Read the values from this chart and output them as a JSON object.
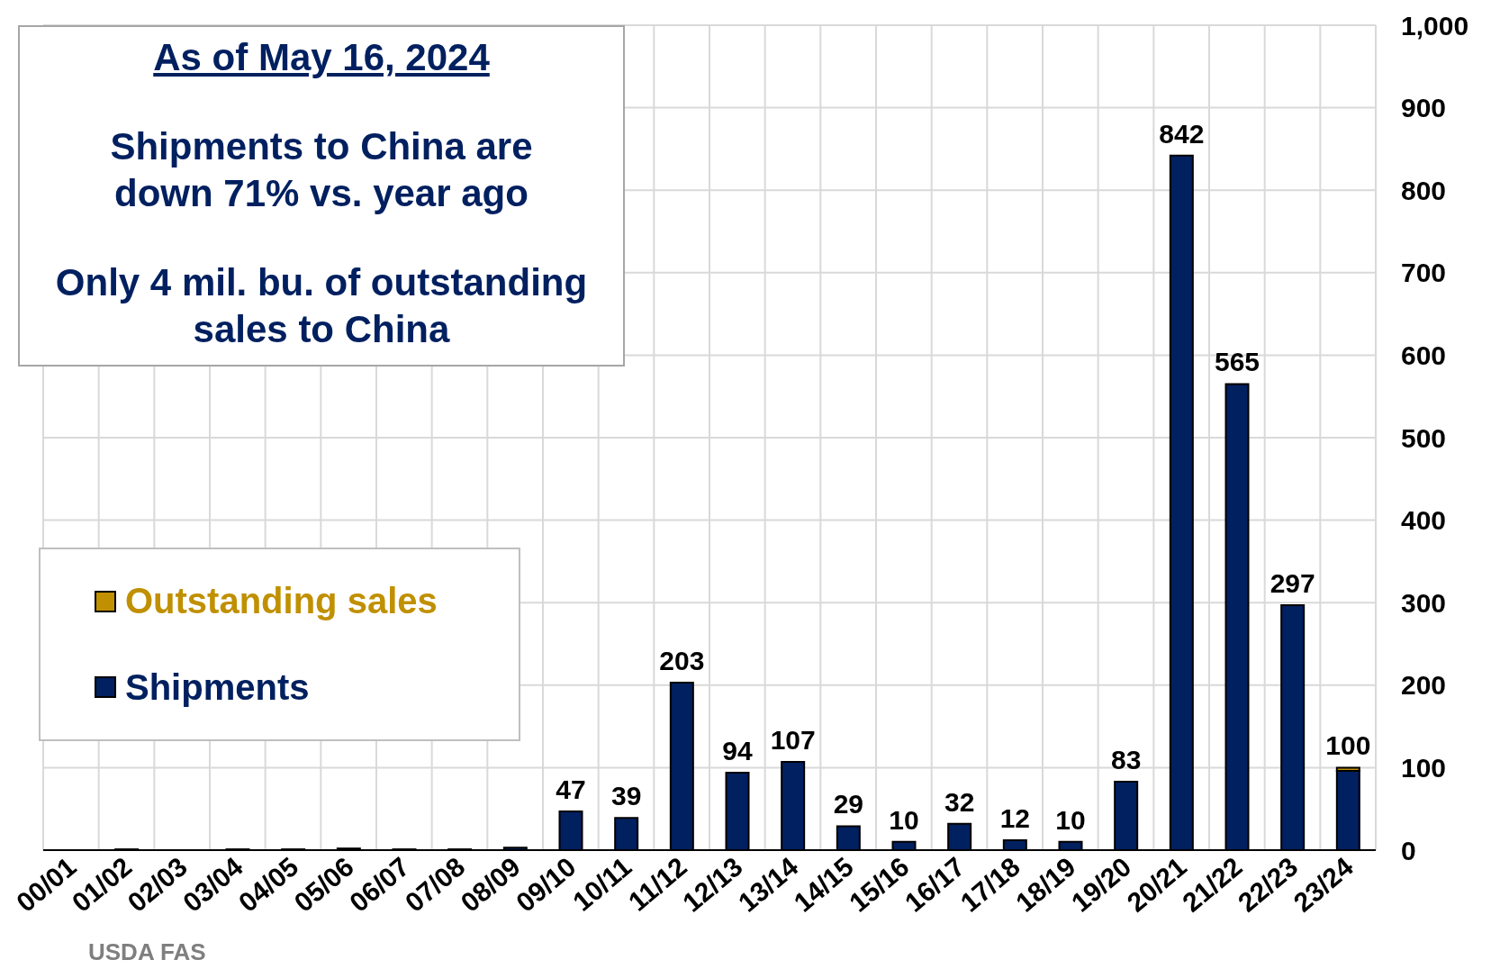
{
  "chart_data": {
    "type": "bar",
    "stacked": true,
    "categories": [
      "00/01",
      "01/02",
      "02/03",
      "03/04",
      "04/05",
      "05/06",
      "06/07",
      "07/08",
      "08/09",
      "09/10",
      "10/11",
      "11/12",
      "12/13",
      "13/14",
      "14/15",
      "15/16",
      "16/17",
      "17/18",
      "18/19",
      "19/20",
      "20/21",
      "21/22",
      "22/23",
      "23/24"
    ],
    "series": [
      {
        "name": "Shipments",
        "color": "#002060",
        "values": [
          0,
          1,
          0,
          1,
          1,
          2,
          1,
          1,
          3,
          47,
          39,
          203,
          94,
          107,
          29,
          10,
          32,
          12,
          10,
          83,
          842,
          565,
          297,
          96
        ]
      },
      {
        "name": "Outstanding sales",
        "color": "#c09000",
        "values": [
          0,
          0,
          0,
          0,
          0,
          0,
          0,
          0,
          0,
          0,
          0,
          0,
          0,
          0,
          0,
          0,
          0,
          0,
          0,
          0,
          0,
          0,
          0,
          4
        ]
      }
    ],
    "totals": [
      null,
      null,
      null,
      null,
      null,
      null,
      null,
      null,
      null,
      "47",
      "39",
      "203",
      "94",
      "107",
      "29",
      "10",
      "32",
      "12",
      "10",
      "83",
      "842",
      "565",
      "297",
      "100"
    ],
    "ylim": [
      0,
      1000
    ],
    "yticks": [
      0,
      100,
      200,
      300,
      400,
      500,
      600,
      700,
      800,
      900,
      {
        "value": 1000,
        "label": "1,000"
      }
    ],
    "grid": true,
    "legend": "bottom left",
    "annotations": [
      "As of May 16, 2024",
      "Shipments to China are down 71% vs. year ago",
      "Only 4 mil. bu. of outstanding sales to China",
      "USDA FAS"
    ]
  }
}
